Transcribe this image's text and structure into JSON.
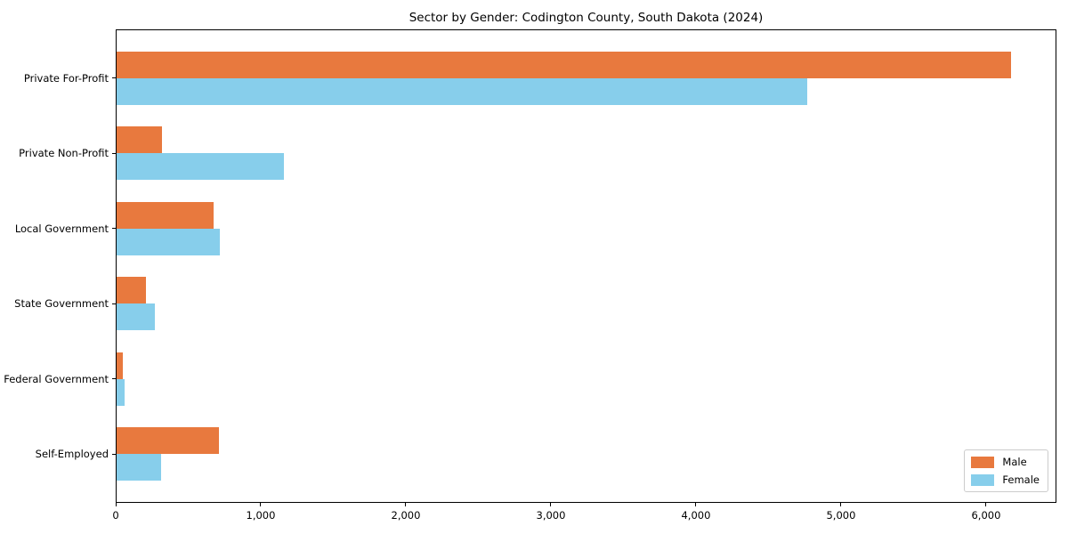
{
  "chart_data": {
    "type": "bar",
    "orientation": "horizontal",
    "title": "Sector by Gender: Codington County, South Dakota (2024)",
    "categories": [
      "Private For-Profit",
      "Private Non-Profit",
      "Local Government",
      "State Government",
      "Federal Government",
      "Self-Employed"
    ],
    "series": [
      {
        "name": "Male",
        "color": "#e8793e",
        "values": [
          6170,
          320,
          675,
          210,
          50,
          710
        ]
      },
      {
        "name": "Female",
        "color": "#87ceeb",
        "values": [
          4770,
          1160,
          720,
          270,
          60,
          310
        ]
      }
    ],
    "xlabel": "",
    "ylabel": "",
    "xlim": [
      0,
      6485
    ],
    "xticks": [
      0,
      1000,
      2000,
      3000,
      4000,
      5000,
      6000
    ],
    "xtick_labels": [
      "0",
      "1,000",
      "2,000",
      "3,000",
      "4,000",
      "5,000",
      "6,000"
    ],
    "grid": false,
    "legend": {
      "position": "lower right"
    },
    "colors": {
      "male": "#e8793e",
      "female": "#87ceeb",
      "spine": "#000000",
      "legend_border": "#cccccc"
    }
  }
}
